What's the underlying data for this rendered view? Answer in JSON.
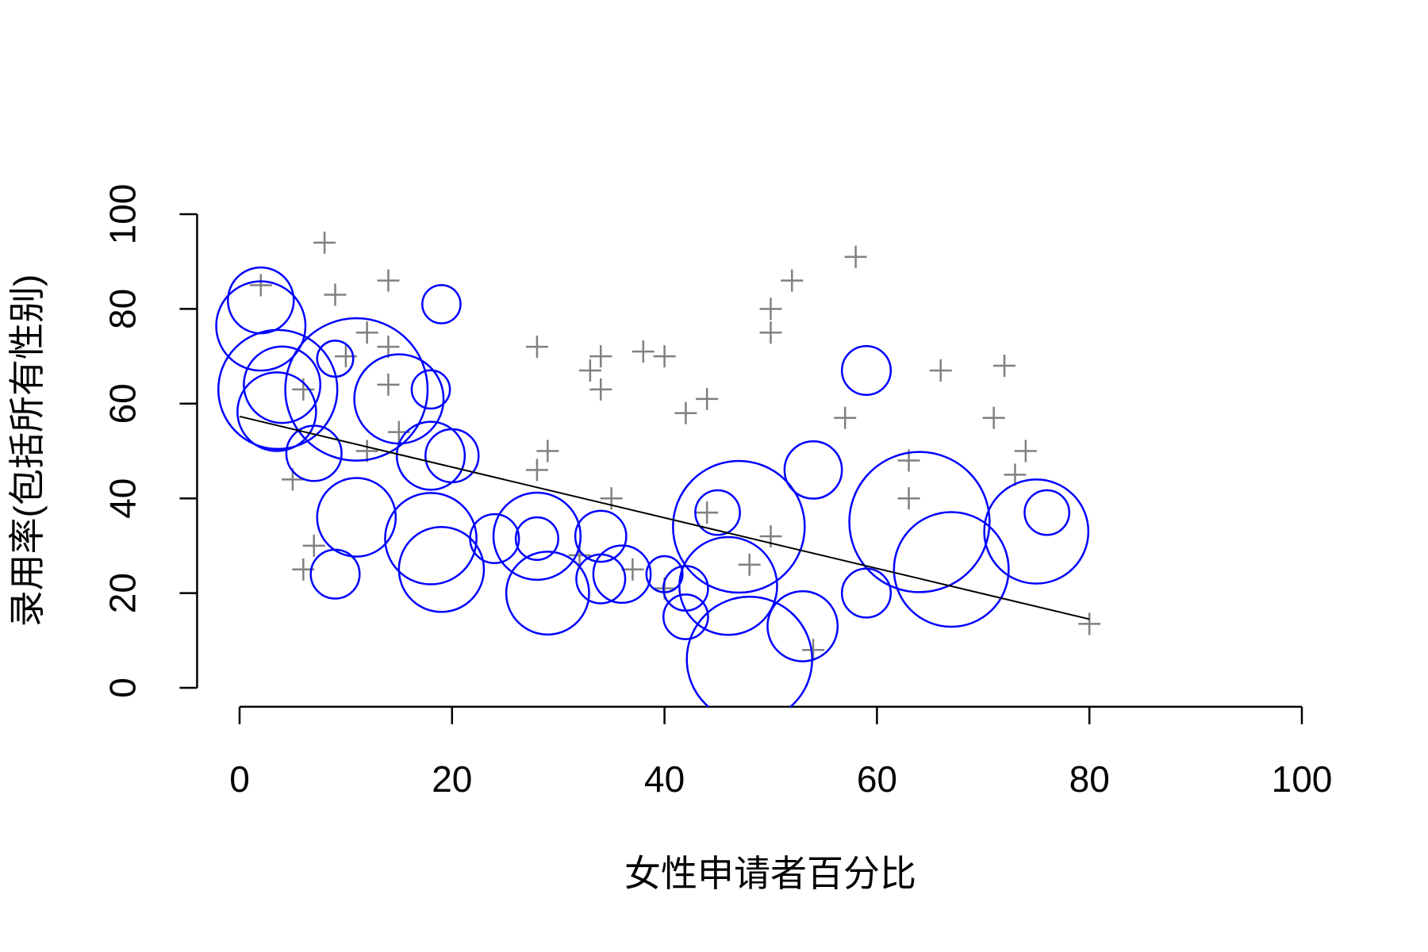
{
  "chart_data": {
    "type": "scatter",
    "x_label": "女性申请者百分比",
    "y_label": "录用率(包括所有性别)",
    "xlim": [
      0,
      100
    ],
    "xticks": [
      0,
      20,
      40,
      60,
      80,
      100
    ],
    "ylim": [
      0,
      100
    ],
    "yticks": [
      0,
      20,
      40,
      60,
      80,
      100
    ],
    "series": [
      {
        "marker": "cross",
        "color": "#808080",
        "x": [
          2,
          8,
          9,
          10,
          12,
          14,
          14,
          14,
          12,
          15,
          5,
          6,
          6,
          7,
          28,
          28,
          29,
          33,
          34,
          34,
          35,
          32,
          38,
          40,
          37,
          40,
          42,
          44,
          44,
          48,
          50,
          50,
          50,
          52,
          54,
          57,
          58,
          63,
          63,
          66,
          71,
          72,
          73,
          74,
          80
        ],
        "values": [
          85,
          94,
          83,
          70,
          75,
          86,
          72,
          64,
          50,
          54,
          44,
          63,
          25,
          30,
          72,
          46,
          50,
          67,
          70,
          63,
          40,
          28,
          71,
          70,
          25,
          21,
          58,
          61,
          37,
          26,
          80,
          75,
          32,
          86,
          8,
          57,
          91,
          48,
          40,
          67,
          57,
          68,
          45,
          50,
          13.5
        ]
      },
      {
        "marker": "circle",
        "color": "#0000ff",
        "x": [
          2,
          2,
          3.6,
          3.5,
          4,
          7,
          9,
          11,
          11,
          9,
          15,
          18,
          19,
          18,
          20,
          18,
          19,
          24,
          28,
          28,
          29,
          34,
          34,
          36,
          40,
          42,
          42,
          45,
          47,
          46,
          48,
          53,
          54,
          59,
          59,
          64,
          67,
          75,
          76
        ],
        "values": [
          81.8,
          76.4,
          63,
          58.3,
          64,
          49.5,
          69.5,
          63,
          36,
          24,
          61,
          63,
          81,
          49,
          49,
          31.5,
          25,
          31.5,
          32,
          31.5,
          20,
          32,
          23,
          24,
          24,
          21,
          15,
          37,
          34,
          21.5,
          6,
          13,
          46,
          67,
          20,
          35,
          25,
          33,
          37
        ],
        "sizes": [
          3.1,
          4.2,
          5.6,
          3.7,
          3.6,
          2.6,
          1.7,
          6.7,
          3.7,
          2.3,
          4.2,
          1.8,
          1.8,
          3.2,
          2.5,
          4.3,
          4.0,
          2.3,
          4.1,
          2.0,
          3.9,
          2.4,
          2.3,
          2.7,
          1.7,
          2.1,
          2.1,
          2.1,
          6.2,
          4.6,
          5.9,
          3.3,
          2.7,
          2.3,
          2.3,
          6.6,
          5.4,
          4.9,
          2.1
        ]
      },
      {
        "marker": "line",
        "color": "#000000",
        "x": [
          0,
          80
        ],
        "values": [
          57.3,
          14.5
        ]
      }
    ]
  }
}
